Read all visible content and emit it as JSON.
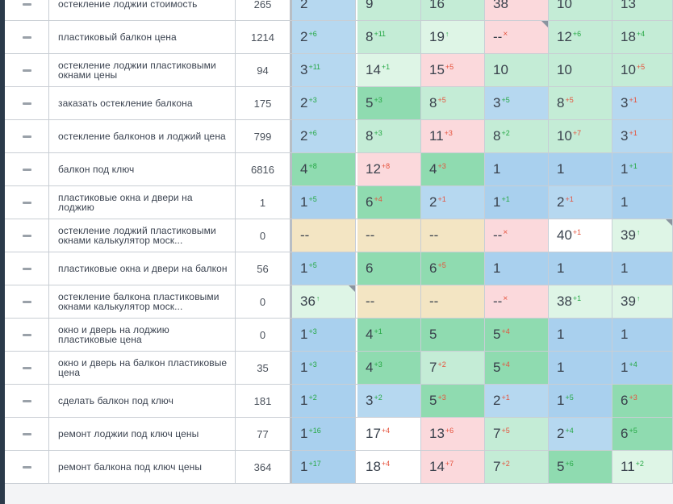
{
  "rows": [
    {
      "keyword": "остекление лоджии стоимость",
      "frequency": "265",
      "positions": [
        {
          "v": "2",
          "d": "",
          "t": "",
          "c": "lblue"
        },
        {
          "v": "9",
          "d": "",
          "t": "",
          "c": "lgreen"
        },
        {
          "v": "16",
          "d": "",
          "t": "",
          "c": "lgreen"
        },
        {
          "v": "38",
          "d": "",
          "t": "",
          "c": "pink"
        },
        {
          "v": "10",
          "d": "",
          "t": "",
          "c": "lgreen"
        },
        {
          "v": "13",
          "d": "",
          "t": "",
          "c": "lgreen"
        }
      ]
    },
    {
      "keyword": "пластиковый балкон цена",
      "frequency": "1214",
      "positions": [
        {
          "v": "2",
          "d": "+6",
          "t": "up",
          "c": "lblue"
        },
        {
          "v": "8",
          "d": "+11",
          "t": "up",
          "c": "lgreen"
        },
        {
          "v": "19",
          "d": "↑",
          "t": "up",
          "c": "mint"
        },
        {
          "v": "--",
          "d": "×",
          "t": "x",
          "c": "pink",
          "corner": true
        },
        {
          "v": "12",
          "d": "+6",
          "t": "up",
          "c": "lgreen"
        },
        {
          "v": "18",
          "d": "+4",
          "t": "up",
          "c": "lgreen"
        }
      ]
    },
    {
      "keyword": "остекление лоджии пластиковыми окнами цены",
      "frequency": "94",
      "positions": [
        {
          "v": "3",
          "d": "+11",
          "t": "up",
          "c": "lblue"
        },
        {
          "v": "14",
          "d": "+1",
          "t": "up",
          "c": "mint"
        },
        {
          "v": "15",
          "d": "+5",
          "t": "down",
          "c": "pink"
        },
        {
          "v": "10",
          "d": "",
          "t": "",
          "c": "lgreen"
        },
        {
          "v": "10",
          "d": "",
          "t": "",
          "c": "lgreen"
        },
        {
          "v": "10",
          "d": "+5",
          "t": "down",
          "c": "lgreen"
        }
      ]
    },
    {
      "keyword": "заказать остекление балкона",
      "frequency": "175",
      "positions": [
        {
          "v": "2",
          "d": "+3",
          "t": "up",
          "c": "lblue"
        },
        {
          "v": "5",
          "d": "+3",
          "t": "up",
          "c": "green"
        },
        {
          "v": "8",
          "d": "+5",
          "t": "down",
          "c": "lgreen"
        },
        {
          "v": "3",
          "d": "+5",
          "t": "up",
          "c": "lblue"
        },
        {
          "v": "8",
          "d": "+5",
          "t": "down",
          "c": "lgreen"
        },
        {
          "v": "3",
          "d": "+1",
          "t": "down",
          "c": "lblue"
        }
      ]
    },
    {
      "keyword": "остекление балконов и лоджий цена",
      "frequency": "799",
      "positions": [
        {
          "v": "2",
          "d": "+6",
          "t": "up",
          "c": "lblue"
        },
        {
          "v": "8",
          "d": "+3",
          "t": "up",
          "c": "lgreen"
        },
        {
          "v": "11",
          "d": "+3",
          "t": "down",
          "c": "pink"
        },
        {
          "v": "8",
          "d": "+2",
          "t": "up",
          "c": "lgreen"
        },
        {
          "v": "10",
          "d": "+7",
          "t": "down",
          "c": "lgreen"
        },
        {
          "v": "3",
          "d": "+1",
          "t": "down",
          "c": "lblue"
        }
      ]
    },
    {
      "keyword": "балкон под ключ",
      "frequency": "6816",
      "positions": [
        {
          "v": "4",
          "d": "+8",
          "t": "up",
          "c": "green"
        },
        {
          "v": "12",
          "d": "+8",
          "t": "down",
          "c": "pink"
        },
        {
          "v": "4",
          "d": "+3",
          "t": "down",
          "c": "green"
        },
        {
          "v": "1",
          "d": "",
          "t": "",
          "c": "blue"
        },
        {
          "v": "1",
          "d": "",
          "t": "",
          "c": "blue"
        },
        {
          "v": "1",
          "d": "+1",
          "t": "up",
          "c": "blue"
        }
      ]
    },
    {
      "keyword": "пластиковые окна и двери на лоджию",
      "frequency": "1",
      "positions": [
        {
          "v": "1",
          "d": "+5",
          "t": "up",
          "c": "blue"
        },
        {
          "v": "6",
          "d": "+4",
          "t": "down",
          "c": "green"
        },
        {
          "v": "2",
          "d": "+1",
          "t": "down",
          "c": "lblue"
        },
        {
          "v": "1",
          "d": "+1",
          "t": "up",
          "c": "blue"
        },
        {
          "v": "2",
          "d": "+1",
          "t": "down",
          "c": "lblue"
        },
        {
          "v": "1",
          "d": "",
          "t": "",
          "c": "blue"
        }
      ]
    },
    {
      "keyword": "остекление лоджий пластиковыми окнами калькулятор моск...",
      "frequency": "0",
      "positions": [
        {
          "v": "--",
          "d": "",
          "t": "",
          "c": "beige"
        },
        {
          "v": "--",
          "d": "",
          "t": "",
          "c": "beige"
        },
        {
          "v": "--",
          "d": "",
          "t": "",
          "c": "beige"
        },
        {
          "v": "--",
          "d": "×",
          "t": "x",
          "c": "pink"
        },
        {
          "v": "40",
          "d": "+1",
          "t": "down",
          "c": "white"
        },
        {
          "v": "39",
          "d": "↑",
          "t": "up",
          "c": "mint",
          "corner": true
        }
      ]
    },
    {
      "keyword": "пластиковые окна и двери на балкон",
      "frequency": "56",
      "positions": [
        {
          "v": "1",
          "d": "+5",
          "t": "up",
          "c": "blue"
        },
        {
          "v": "6",
          "d": "",
          "t": "",
          "c": "green"
        },
        {
          "v": "6",
          "d": "+5",
          "t": "down",
          "c": "green"
        },
        {
          "v": "1",
          "d": "",
          "t": "",
          "c": "blue"
        },
        {
          "v": "1",
          "d": "",
          "t": "",
          "c": "blue"
        },
        {
          "v": "1",
          "d": "",
          "t": "",
          "c": "blue"
        }
      ]
    },
    {
      "keyword": "остекление балкона пластиковыми окнами калькулятор моск...",
      "frequency": "0",
      "positions": [
        {
          "v": "36",
          "d": "↑",
          "t": "up",
          "c": "mint",
          "corner": true
        },
        {
          "v": "--",
          "d": "",
          "t": "",
          "c": "beige"
        },
        {
          "v": "--",
          "d": "",
          "t": "",
          "c": "beige"
        },
        {
          "v": "--",
          "d": "×",
          "t": "x",
          "c": "pink"
        },
        {
          "v": "38",
          "d": "+1",
          "t": "up",
          "c": "mint"
        },
        {
          "v": "39",
          "d": "↑",
          "t": "up",
          "c": "mint"
        }
      ]
    },
    {
      "keyword": "окно и дверь на лоджию пластиковые цена",
      "frequency": "0",
      "positions": [
        {
          "v": "1",
          "d": "+3",
          "t": "up",
          "c": "blue"
        },
        {
          "v": "4",
          "d": "+1",
          "t": "up",
          "c": "green"
        },
        {
          "v": "5",
          "d": "",
          "t": "",
          "c": "green"
        },
        {
          "v": "5",
          "d": "+4",
          "t": "down",
          "c": "green"
        },
        {
          "v": "1",
          "d": "",
          "t": "",
          "c": "blue"
        },
        {
          "v": "1",
          "d": "",
          "t": "",
          "c": "blue"
        }
      ]
    },
    {
      "keyword": "окно и дверь на балкон пластиковые цена",
      "frequency": "35",
      "positions": [
        {
          "v": "1",
          "d": "+3",
          "t": "up",
          "c": "blue"
        },
        {
          "v": "4",
          "d": "+3",
          "t": "up",
          "c": "green"
        },
        {
          "v": "7",
          "d": "+2",
          "t": "down",
          "c": "lgreen"
        },
        {
          "v": "5",
          "d": "+4",
          "t": "down",
          "c": "green"
        },
        {
          "v": "1",
          "d": "",
          "t": "",
          "c": "blue"
        },
        {
          "v": "1",
          "d": "+4",
          "t": "up",
          "c": "blue"
        }
      ]
    },
    {
      "keyword": "сделать балкон под ключ",
      "frequency": "181",
      "positions": [
        {
          "v": "1",
          "d": "+2",
          "t": "up",
          "c": "blue"
        },
        {
          "v": "3",
          "d": "+2",
          "t": "up",
          "c": "lblue"
        },
        {
          "v": "5",
          "d": "+3",
          "t": "down",
          "c": "green"
        },
        {
          "v": "2",
          "d": "+1",
          "t": "down",
          "c": "lblue"
        },
        {
          "v": "1",
          "d": "+5",
          "t": "up",
          "c": "blue"
        },
        {
          "v": "6",
          "d": "+3",
          "t": "down",
          "c": "green"
        }
      ]
    },
    {
      "keyword": "ремонт лоджии под ключ цены",
      "frequency": "77",
      "positions": [
        {
          "v": "1",
          "d": "+16",
          "t": "up",
          "c": "blue"
        },
        {
          "v": "17",
          "d": "+4",
          "t": "down",
          "c": "white"
        },
        {
          "v": "13",
          "d": "+6",
          "t": "down",
          "c": "pink"
        },
        {
          "v": "7",
          "d": "+5",
          "t": "down",
          "c": "lgreen"
        },
        {
          "v": "2",
          "d": "+4",
          "t": "up",
          "c": "lblue"
        },
        {
          "v": "6",
          "d": "+5",
          "t": "up",
          "c": "green"
        }
      ]
    },
    {
      "keyword": "ремонт балкона под ключ цены",
      "frequency": "364",
      "positions": [
        {
          "v": "1",
          "d": "+17",
          "t": "up",
          "c": "blue"
        },
        {
          "v": "18",
          "d": "+4",
          "t": "down",
          "c": "white"
        },
        {
          "v": "14",
          "d": "+7",
          "t": "down",
          "c": "pink"
        },
        {
          "v": "7",
          "d": "+2",
          "t": "down",
          "c": "lgreen"
        },
        {
          "v": "5",
          "d": "+6",
          "t": "up",
          "c": "green"
        },
        {
          "v": "11",
          "d": "+2",
          "t": "up",
          "c": "mint"
        }
      ]
    }
  ]
}
